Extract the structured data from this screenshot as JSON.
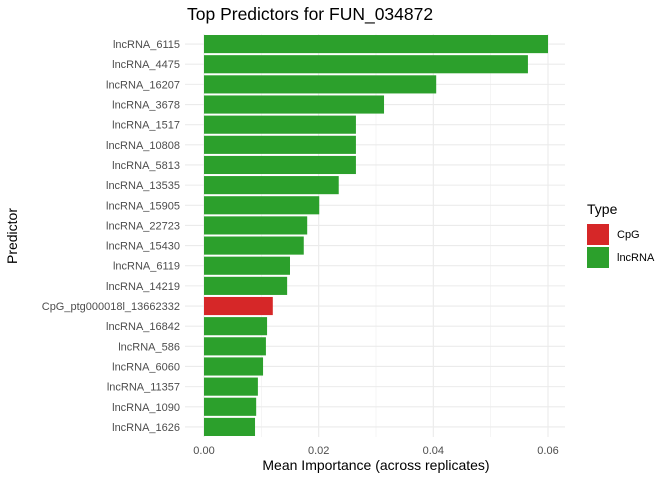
{
  "chart_data": {
    "type": "bar",
    "orientation": "horizontal",
    "title": "Top Predictors for FUN_034872",
    "xlabel": "Mean Importance (across replicates)",
    "ylabel": "Predictor",
    "xlim": [
      0,
      0.0625
    ],
    "xticks": [
      "0.00",
      "0.02",
      "0.04",
      "0.06"
    ],
    "grid": true,
    "legend": {
      "title": "Type",
      "position": "right",
      "entries": [
        {
          "name": "CpG",
          "color": "#d62728"
        },
        {
          "name": "lncRNA",
          "color": "#2ca02c"
        }
      ]
    },
    "categories": [
      "lncRNA_6115",
      "lncRNA_4475",
      "lncRNA_16207",
      "lncRNA_3678",
      "lncRNA_1517",
      "lncRNA_10808",
      "lncRNA_5813",
      "lncRNA_13535",
      "lncRNA_15905",
      "lncRNA_22723",
      "lncRNA_15430",
      "lncRNA_6119",
      "lncRNA_14219",
      "CpG_ptg000018l_13662332",
      "lncRNA_16842",
      "lncRNA_586",
      "lncRNA_6060",
      "lncRNA_11357",
      "lncRNA_1090",
      "lncRNA_1626"
    ],
    "types": [
      "lncRNA",
      "lncRNA",
      "lncRNA",
      "lncRNA",
      "lncRNA",
      "lncRNA",
      "lncRNA",
      "lncRNA",
      "lncRNA",
      "lncRNA",
      "lncRNA",
      "lncRNA",
      "lncRNA",
      "CpG",
      "lncRNA",
      "lncRNA",
      "lncRNA",
      "lncRNA",
      "lncRNA",
      "lncRNA"
    ],
    "values": [
      0.06,
      0.0565,
      0.0405,
      0.0314,
      0.0265,
      0.0265,
      0.0265,
      0.0235,
      0.0201,
      0.018,
      0.0174,
      0.015,
      0.0145,
      0.012,
      0.011,
      0.0108,
      0.0103,
      0.0094,
      0.0091,
      0.0089
    ]
  }
}
